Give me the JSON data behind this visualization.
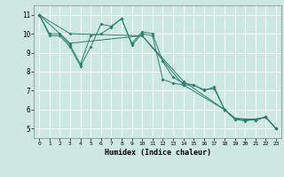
{
  "xlabel": "Humidex (Indice chaleur)",
  "background_color": "#cce8e0",
  "grid_color": "#dddddd",
  "line_color": "#2e7d6e",
  "xlim": [
    -0.5,
    23.5
  ],
  "ylim": [
    4.5,
    11.5
  ],
  "xticks": [
    0,
    1,
    2,
    3,
    4,
    5,
    6,
    7,
    8,
    9,
    10,
    11,
    12,
    13,
    14,
    15,
    16,
    17,
    18,
    19,
    20,
    21,
    22,
    23
  ],
  "yticks": [
    5,
    6,
    7,
    8,
    9,
    10,
    11
  ],
  "series": [
    {
      "x": [
        0,
        1,
        2,
        3,
        4,
        5,
        6,
        7,
        8,
        9,
        10,
        11,
        12,
        13,
        14,
        15,
        16,
        17,
        18,
        19,
        20,
        21,
        22,
        23
      ],
      "y": [
        11.0,
        9.9,
        9.9,
        9.3,
        8.3,
        9.3,
        10.5,
        10.4,
        10.8,
        9.4,
        10.0,
        9.9,
        7.6,
        7.4,
        7.3,
        7.3,
        7.0,
        7.2,
        6.0,
        5.5,
        5.5,
        5.5,
        5.6,
        5.0
      ]
    },
    {
      "x": [
        0,
        1,
        2,
        3,
        4,
        5,
        6,
        7,
        8,
        9,
        10,
        11,
        12,
        13,
        14,
        15,
        16,
        17,
        18,
        19,
        20,
        21,
        22,
        23
      ],
      "y": [
        11.0,
        10.0,
        10.0,
        9.4,
        8.4,
        9.9,
        10.0,
        10.35,
        10.8,
        9.5,
        10.1,
        10.0,
        8.55,
        7.7,
        7.4,
        7.3,
        7.05,
        7.1,
        6.0,
        5.5,
        5.4,
        5.5,
        5.6,
        5.0
      ]
    },
    {
      "x": [
        0,
        3,
        10,
        14,
        18,
        19,
        20,
        21,
        22,
        23
      ],
      "y": [
        11.0,
        10.0,
        9.9,
        7.5,
        6.0,
        5.55,
        5.5,
        5.45,
        5.6,
        5.0
      ]
    },
    {
      "x": [
        0,
        3,
        10,
        14,
        18,
        19,
        20,
        21,
        22,
        23
      ],
      "y": [
        11.0,
        9.5,
        9.9,
        7.3,
        6.0,
        5.55,
        5.45,
        5.45,
        5.6,
        5.0
      ]
    }
  ]
}
